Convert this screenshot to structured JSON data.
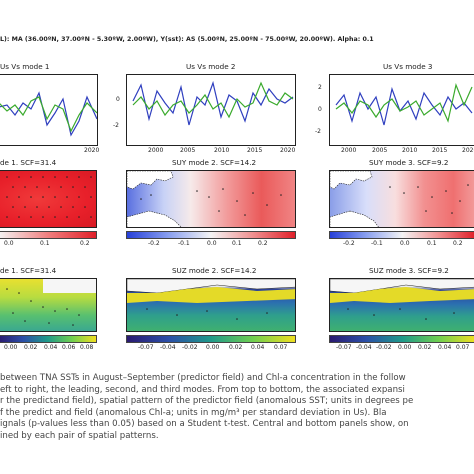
{
  "header": "L): MA (36.00ºN, 37.00ºN - 5.30ºW, 2.00ºW), Y(sst): AS (5.00ºN, 25.00ºN - 75.00ºW, 20.00ºW). Alpha: 0.1",
  "row1": {
    "titles": [
      "Us Vs mode 1",
      "Us Vs mode 2",
      "Us Vs mode 3"
    ],
    "x_ticks": [
      "2020",
      "2000",
      "2005",
      "2010",
      "2015",
      "2020",
      "2000",
      "2005",
      "2010",
      "2015",
      "2020"
    ],
    "y_ticks_panel2": [
      "0",
      "-2"
    ],
    "y_ticks_panel1": [
      "0",
      "-1"
    ],
    "y_ticks_panel3": [
      "2",
      "0",
      "-2"
    ]
  },
  "row2": {
    "titles": [
      "de 1. SCF=31.4",
      "SUY mode 2. SCF=14.2",
      "SUY mode 3. SCF=9.2"
    ],
    "cbar_ticks_1": [
      "0.0",
      "0.1",
      "0.2"
    ],
    "cbar_ticks_2": [
      "-0.2",
      "-0.1",
      "0.0",
      "0.1",
      "0.2"
    ],
    "cbar_ticks_3": [
      "-0.2",
      "-0.1",
      "0.0",
      "0.1",
      "0.2"
    ]
  },
  "row3": {
    "titles": [
      "de 1. SCF=31.4",
      "SUZ mode 2. SCF=14.2",
      "SUZ mode 3. SCF=9.2"
    ],
    "cbar_ticks_1": [
      "0.00",
      "0.02",
      "0.04",
      "0.06",
      "0.08"
    ],
    "cbar_ticks_2": [
      "-0.07",
      "-0.04",
      "-0.02",
      "0.00",
      "0.02",
      "0.04",
      "0.07"
    ],
    "cbar_ticks_3": [
      "-0.07",
      "-0.04",
      "-0.02",
      "0.00",
      "0.02",
      "0.04",
      "0.07"
    ]
  },
  "caption_lines": [
    "between TNA SSTs in August–September (predictor field) and Chl-a concentration in the follow",
    "eft to right, the leading, second, and third modes. From top to bottom, the associated expansi",
    "r the predictand field), spatial pattern of the predictor field (anomalous SST; units in degrees pe",
    "f the predict and field (anomalous Chl-a; units in mg/m³ per standard deviation in Us). Bla",
    "ignals (p-values less than 0.05) based on a Student t-test. Central and bottom panels show, on",
    "ined by each pair of spatial patterns."
  ],
  "colors": {
    "series_a": "#2f3fbf",
    "series_b": "#3aaa2c",
    "sst_cmap": [
      "#2740d8",
      "#8aa0f0",
      "#f4f4f4",
      "#f09090",
      "#e0202a"
    ],
    "chl_cmap": [
      "#2a1a70",
      "#2b4fa8",
      "#1f9a8a",
      "#6fcf50",
      "#f0e020"
    ]
  }
}
